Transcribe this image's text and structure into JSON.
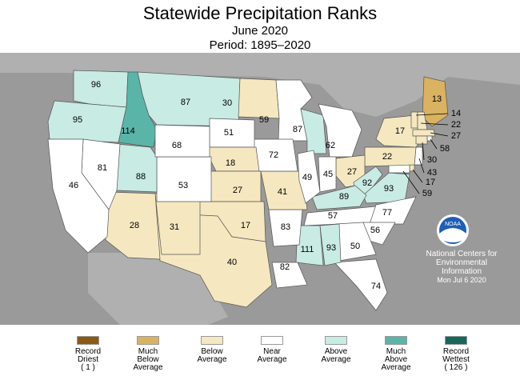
{
  "title": "Statewide Precipitation Ranks",
  "subtitle": "June 2020",
  "period": "Period: 1895–2020",
  "colors": {
    "record_driest": "#8b5a17",
    "much_below": "#d9b262",
    "below": "#f5e8c0",
    "near": "#ffffff",
    "above": "#c8ebe4",
    "much_above": "#5ab5a8",
    "record_wettest": "#17675d",
    "background": "#9a9a9a"
  },
  "states": [
    {
      "id": "WA",
      "rank": "96"
    },
    {
      "id": "OR",
      "rank": "95"
    },
    {
      "id": "ID",
      "rank": "114"
    },
    {
      "id": "MT",
      "rank": "87"
    },
    {
      "id": "ND",
      "rank": "30"
    },
    {
      "id": "MN",
      "rank": "59"
    },
    {
      "id": "WI",
      "rank": "87"
    },
    {
      "id": "MI",
      "rank": "62"
    },
    {
      "id": "NY",
      "rank": "17"
    },
    {
      "id": "ME",
      "rank": "13"
    },
    {
      "id": "VT",
      "rank": "14"
    },
    {
      "id": "NH",
      "rank": "22"
    },
    {
      "id": "MA",
      "rank": "27"
    },
    {
      "id": "RI",
      "rank": "58"
    },
    {
      "id": "CT",
      "rank": "30"
    },
    {
      "id": "NJ",
      "rank": "43"
    },
    {
      "id": "DE",
      "rank": "17"
    },
    {
      "id": "MD",
      "rank": "59"
    },
    {
      "id": "PA",
      "rank": "22"
    },
    {
      "id": "OH",
      "rank": "27"
    },
    {
      "id": "WV",
      "rank": "92"
    },
    {
      "id": "VA",
      "rank": "93"
    },
    {
      "id": "KY",
      "rank": "89"
    },
    {
      "id": "TN",
      "rank": "57"
    },
    {
      "id": "NC",
      "rank": "77"
    },
    {
      "id": "SC",
      "rank": "56"
    },
    {
      "id": "GA",
      "rank": "50"
    },
    {
      "id": "FL",
      "rank": "74"
    },
    {
      "id": "AL",
      "rank": "93"
    },
    {
      "id": "MS",
      "rank": "111"
    },
    {
      "id": "LA",
      "rank": "82"
    },
    {
      "id": "AR",
      "rank": "83"
    },
    {
      "id": "MO",
      "rank": "41"
    },
    {
      "id": "IA",
      "rank": "72"
    },
    {
      "id": "IL",
      "rank": "49"
    },
    {
      "id": "IN",
      "rank": "45"
    },
    {
      "id": "SD",
      "rank": "51"
    },
    {
      "id": "NE",
      "rank": "18"
    },
    {
      "id": "KS",
      "rank": "27"
    },
    {
      "id": "OK",
      "rank": "17"
    },
    {
      "id": "TX",
      "rank": "40"
    },
    {
      "id": "NM",
      "rank": "31"
    },
    {
      "id": "AZ",
      "rank": "28"
    },
    {
      "id": "CO",
      "rank": "53"
    },
    {
      "id": "UT",
      "rank": "88"
    },
    {
      "id": "WY",
      "rank": "68"
    },
    {
      "id": "NV",
      "rank": "81"
    },
    {
      "id": "CA",
      "rank": "46"
    }
  ],
  "credit": {
    "org_lines": [
      "National Centers for",
      "Environmental",
      "Information"
    ],
    "date": "Mon Jul  6 2020",
    "logo_text": "NOAA"
  },
  "legend": [
    {
      "lines": [
        "Record",
        "Driest",
        "( 1 )"
      ],
      "color_key": "record_driest"
    },
    {
      "lines": [
        "Much",
        "Below",
        "Average"
      ],
      "color_key": "much_below"
    },
    {
      "lines": [
        "Below",
        "Average"
      ],
      "color_key": "below"
    },
    {
      "lines": [
        "Near",
        "Average"
      ],
      "color_key": "near"
    },
    {
      "lines": [
        "Above",
        "Average"
      ],
      "color_key": "above"
    },
    {
      "lines": [
        "Much",
        "Above",
        "Average"
      ],
      "color_key": "much_above"
    },
    {
      "lines": [
        "Record",
        "Wettest",
        "( 126 )"
      ],
      "color_key": "record_wettest"
    }
  ]
}
